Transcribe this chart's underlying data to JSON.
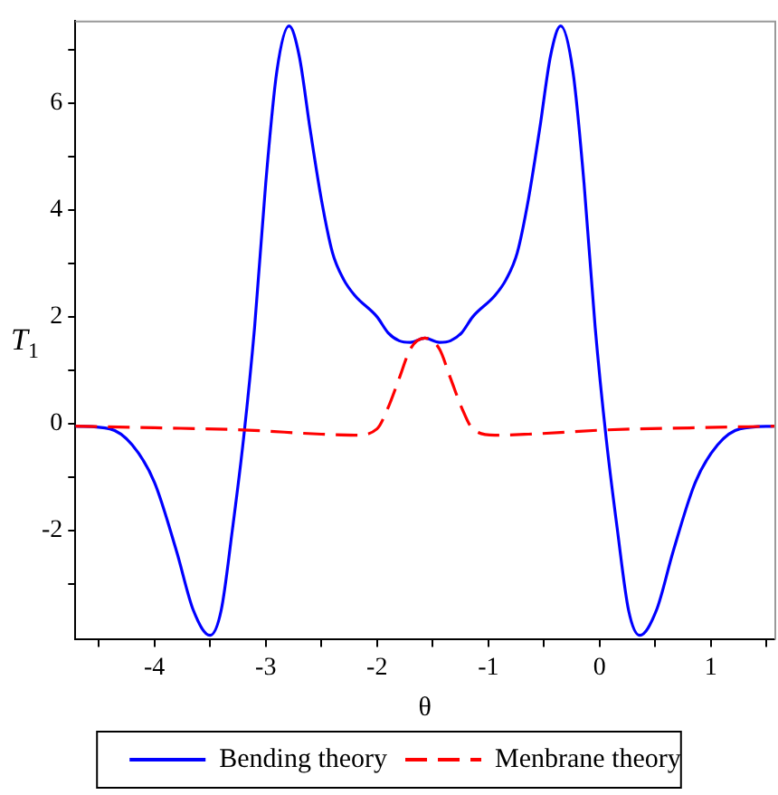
{
  "chart_data": {
    "type": "line",
    "xlabel": "θ",
    "ylabel": "T$_{1}$",
    "xlim": [
      -4.71,
      1.57
    ],
    "ylim": [
      -4.05,
      7.55
    ],
    "xticks": [
      {
        "value": -4.5,
        "label": null
      },
      -4,
      {
        "value": -3.5,
        "label": null
      },
      -3,
      {
        "value": -2.5,
        "label": null
      },
      -2,
      {
        "value": -1.5,
        "label": null
      },
      -1,
      {
        "value": -0.5,
        "label": null
      },
      0,
      {
        "value": 0.5,
        "label": null
      },
      1,
      {
        "value": 1.5,
        "label": null
      }
    ],
    "yticks": [
      {
        "value": -3,
        "label": null
      },
      -2,
      {
        "value": -1,
        "label": null
      },
      0,
      {
        "value": 1,
        "label": null
      },
      2,
      {
        "value": 3,
        "label": null
      },
      4,
      {
        "value": 5,
        "label": null
      },
      6,
      {
        "value": 7,
        "label": null
      }
    ],
    "grid": false,
    "legend": "bottom",
    "marker": "none",
    "series": [
      {
        "name": "Bending theory",
        "color": "#0000ff",
        "line_style": "solid",
        "x": [
          -4.71,
          -4.4,
          -4.2,
          -4.0,
          -3.8,
          -3.65,
          -3.5,
          -3.4,
          -3.3,
          -3.2,
          -3.1,
          -3.0,
          -2.9,
          -2.79,
          -2.7,
          -2.6,
          -2.5,
          -2.4,
          -2.3,
          -2.2,
          -2.0,
          -1.9,
          -1.8,
          -1.7,
          -1.57,
          -1.44,
          -1.34,
          -1.24,
          -1.14,
          -0.94,
          -0.84,
          -0.74,
          -0.64,
          -0.54,
          -0.44,
          -0.35,
          -0.24,
          -0.14,
          -0.04,
          0.06,
          0.16,
          0.26,
          0.36,
          0.51,
          0.66,
          0.86,
          1.06,
          1.26,
          1.57
        ],
        "values": [
          -0.05,
          -0.1,
          -0.4,
          -1.1,
          -2.4,
          -3.5,
          -3.97,
          -3.5,
          -2.0,
          -0.3,
          1.8,
          4.5,
          6.6,
          7.45,
          6.9,
          5.5,
          4.2,
          3.2,
          2.7,
          2.4,
          2.0,
          1.7,
          1.55,
          1.52,
          1.6,
          1.52,
          1.55,
          1.7,
          2.0,
          2.4,
          2.7,
          3.2,
          4.2,
          5.5,
          6.9,
          7.45,
          6.6,
          4.5,
          1.8,
          -0.3,
          -2.0,
          -3.5,
          -3.97,
          -3.5,
          -2.4,
          -1.1,
          -0.4,
          -0.1,
          -0.05
        ]
      },
      {
        "name": "Menbrane theory",
        "color": "#ff0000",
        "line_style": "dashed",
        "x": [
          -4.71,
          -4.0,
          -3.2,
          -2.5,
          -2.2,
          -2.0,
          -1.9,
          -1.8,
          -1.7,
          -1.57,
          -1.44,
          -1.34,
          -1.24,
          -1.14,
          -0.94,
          -0.64,
          0.06,
          0.86,
          1.57
        ],
        "values": [
          -0.05,
          -0.08,
          -0.12,
          -0.2,
          -0.22,
          -0.1,
          0.3,
          0.85,
          1.4,
          1.6,
          1.4,
          0.85,
          0.3,
          -0.1,
          -0.22,
          -0.2,
          -0.12,
          -0.08,
          -0.05
        ]
      }
    ]
  }
}
